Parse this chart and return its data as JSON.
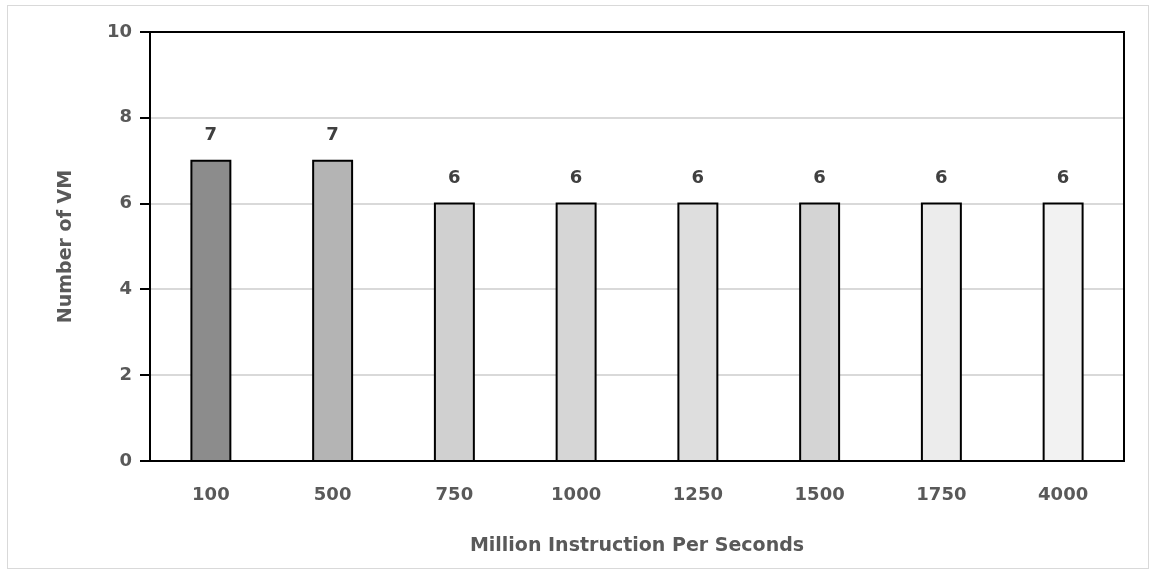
{
  "chart_data": {
    "type": "bar",
    "xlabel": "Million Instruction Per Seconds",
    "ylabel": "Number of VM",
    "categories": [
      "100",
      "500",
      "750",
      "1000",
      "1250",
      "1500",
      "1750",
      "4000"
    ],
    "values": [
      7,
      7,
      6,
      6,
      6,
      6,
      6,
      6
    ],
    "colors": [
      "#8c8c8c",
      "#b4b4b4",
      "#d0d0d0",
      "#d6d6d6",
      "#dedede",
      "#d4d4d4",
      "#ececec",
      "#f2f2f2"
    ],
    "ylim": [
      0,
      10
    ],
    "yticks": [
      0,
      2,
      4,
      6,
      8,
      10
    ],
    "grid": "y",
    "data_labels": true
  }
}
